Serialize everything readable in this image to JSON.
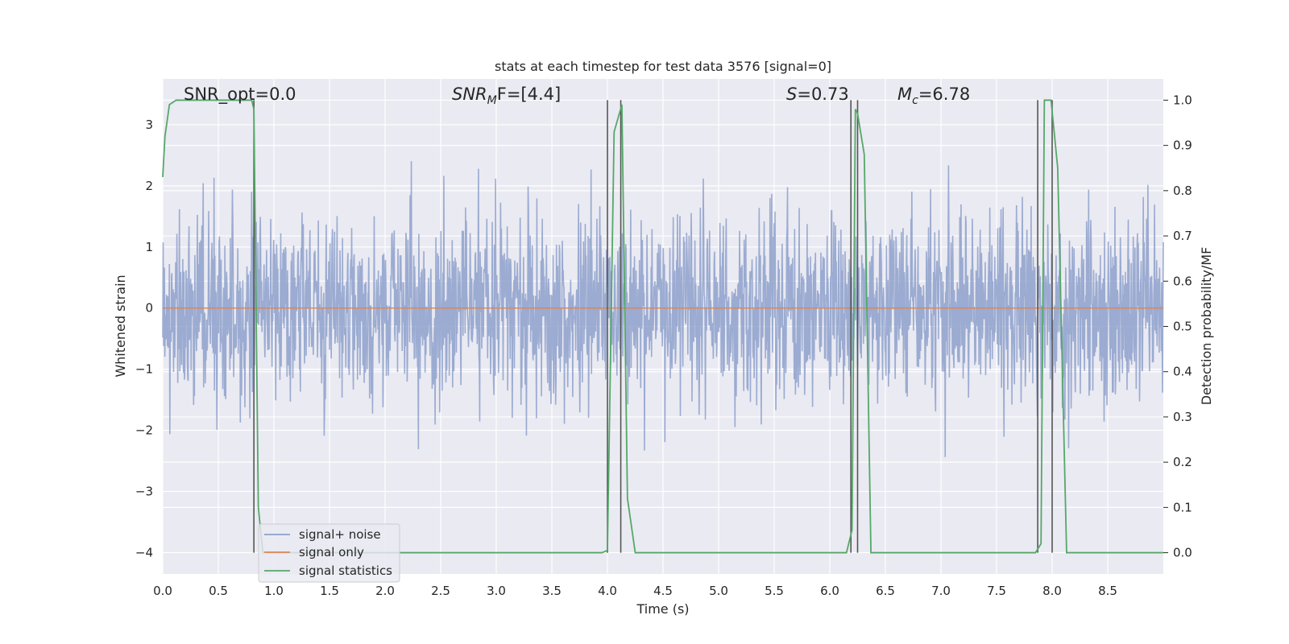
{
  "chart_data": {
    "type": "line",
    "title": "stats at each timestep for test data 3576 [signal=0]",
    "xlabel": "Time (s)",
    "ylabel": "Whitened strain",
    "ylabel_right": "Detection probability/MF",
    "xlim": [
      0.0,
      9.0
    ],
    "ylim": [
      -4.35,
      3.75
    ],
    "ylim_right": [
      -0.047,
      1.047
    ],
    "x_ticks": [
      "0.0",
      "0.5",
      "1.0",
      "1.5",
      "2.0",
      "2.5",
      "3.0",
      "3.5",
      "4.0",
      "4.5",
      "5.0",
      "5.5",
      "6.0",
      "6.5",
      "7.0",
      "7.5",
      "8.0",
      "8.5"
    ],
    "y_ticks": [
      "−4",
      "−3",
      "−2",
      "−1",
      "0",
      "1",
      "2",
      "3"
    ],
    "y_ticks_right": [
      "0.0",
      "0.1",
      "0.2",
      "0.3",
      "0.4",
      "0.5",
      "0.6",
      "0.7",
      "0.8",
      "0.9",
      "1.0"
    ],
    "annotations": {
      "snr_opt": "SNR_opt=0.0",
      "snr_mf_base": "SNR",
      "snr_mf_sub": "M",
      "snr_mf_rest": "F=[4.4]",
      "s_italic": "S",
      "s_rest": "=0.73",
      "mc_base": "M",
      "mc_sub": "c",
      "mc_rest": "=6.78"
    },
    "series": [
      {
        "name": "signal+ noise",
        "color": "#8da0cb",
        "noise_std": 0.75,
        "noise_clip": [
          -3.6,
          3.4
        ]
      },
      {
        "name": "signal only",
        "color": "#dd8452",
        "x": [
          0.0,
          9.0
        ],
        "y": [
          0,
          0
        ]
      },
      {
        "name": "signal statistics",
        "color": "#55a868",
        "axis": "right",
        "x": [
          0.0,
          0.02,
          0.06,
          0.12,
          0.3,
          0.6,
          0.8,
          0.82,
          0.86,
          0.9,
          3.95,
          4.0,
          4.06,
          4.13,
          4.18,
          4.25,
          6.15,
          6.2,
          6.23,
          6.25,
          6.31,
          6.37,
          6.6,
          7.85,
          7.9,
          7.93,
          7.95,
          7.99,
          8.05,
          8.13,
          9.0
        ],
        "y": [
          0.83,
          0.92,
          0.99,
          1.0,
          1.0,
          1.0,
          1.0,
          0.98,
          0.1,
          0.0,
          0.0,
          0.005,
          0.93,
          0.99,
          0.12,
          0.0,
          0.0,
          0.05,
          0.98,
          0.97,
          0.88,
          0.0,
          0.0,
          0.0,
          0.02,
          1.0,
          1.0,
          1.0,
          0.85,
          0.0,
          0.0
        ]
      }
    ],
    "vlines": [
      {
        "x": 0.82,
        "color": "#555555"
      },
      {
        "x": 4.0,
        "color": "#555555"
      },
      {
        "x": 4.12,
        "color": "#555555"
      },
      {
        "x": 6.19,
        "color": "#555555"
      },
      {
        "x": 6.25,
        "color": "#555555"
      },
      {
        "x": 7.87,
        "color": "#555555"
      },
      {
        "x": 8.0,
        "color": "#555555"
      }
    ],
    "grid": true,
    "legend_position": "lower-left",
    "colors": {
      "background": "#eaeaf2",
      "grid": "#ffffff"
    }
  }
}
